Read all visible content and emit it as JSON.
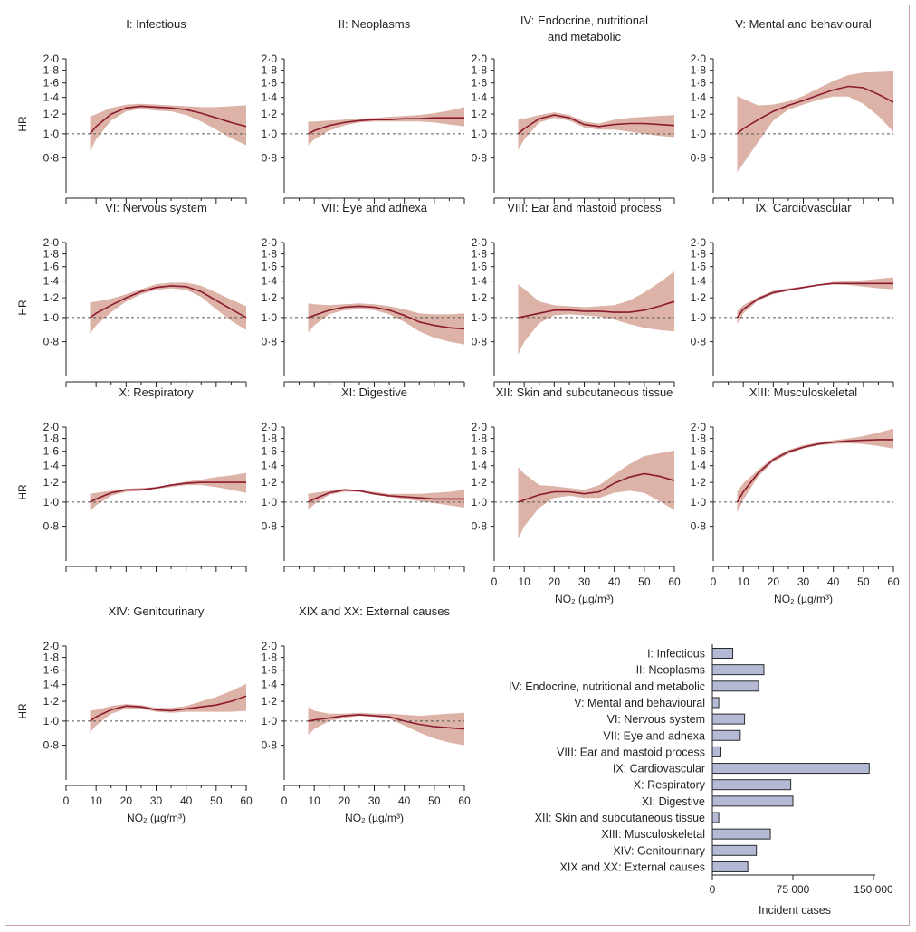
{
  "chart_data": [
    {
      "type": "line",
      "title": "I: Infectious",
      "ylabel": "HR",
      "ylim": [
        0.6,
        2.0
      ],
      "xlim": [
        0,
        60
      ],
      "yticks": [
        "2·0",
        "1·8",
        "1·6",
        "1·4",
        "1·2",
        "1·0",
        "0·8"
      ],
      "xticks": [],
      "xlabel": "",
      "reference_line": 1.0,
      "x": [
        8,
        10,
        15,
        20,
        25,
        30,
        35,
        40,
        45,
        50,
        55,
        60
      ],
      "hr": [
        1.0,
        1.07,
        1.2,
        1.27,
        1.29,
        1.28,
        1.27,
        1.25,
        1.21,
        1.16,
        1.11,
        1.07
      ],
      "lower": [
        0.85,
        0.95,
        1.13,
        1.23,
        1.26,
        1.24,
        1.23,
        1.19,
        1.12,
        1.04,
        0.96,
        0.9
      ],
      "upper": [
        1.17,
        1.2,
        1.27,
        1.31,
        1.32,
        1.31,
        1.3,
        1.29,
        1.28,
        1.28,
        1.29,
        1.3
      ]
    },
    {
      "type": "line",
      "title": "II: Neoplasms",
      "ylabel": "",
      "ylim": [
        0.6,
        2.0
      ],
      "xlim": [
        0,
        60
      ],
      "yticks": [
        "2·0",
        "1·8",
        "1·6",
        "1·4",
        "1·2",
        "1·0",
        "0·8"
      ],
      "xticks": [],
      "xlabel": "",
      "reference_line": 1.0,
      "x": [
        8,
        10,
        15,
        20,
        25,
        30,
        35,
        40,
        45,
        50,
        55,
        60
      ],
      "hr": [
        1.0,
        1.03,
        1.08,
        1.11,
        1.13,
        1.14,
        1.14,
        1.15,
        1.15,
        1.16,
        1.16,
        1.16
      ],
      "lower": [
        0.9,
        0.95,
        1.03,
        1.08,
        1.11,
        1.12,
        1.12,
        1.12,
        1.12,
        1.11,
        1.09,
        1.07
      ],
      "upper": [
        1.12,
        1.12,
        1.13,
        1.14,
        1.15,
        1.16,
        1.17,
        1.18,
        1.19,
        1.21,
        1.24,
        1.28
      ]
    },
    {
      "type": "line",
      "title": "IV: Endocrine, nutritional and metabolic",
      "ylabel": "",
      "ylim": [
        0.6,
        2.0
      ],
      "xlim": [
        0,
        60
      ],
      "yticks": [
        "2·0",
        "1·8",
        "1·6",
        "1·4",
        "1·2",
        "1·0",
        "0·8"
      ],
      "xticks": [],
      "xlabel": "",
      "reference_line": 1.0,
      "x": [
        8,
        10,
        15,
        20,
        25,
        30,
        35,
        40,
        45,
        50,
        55,
        60
      ],
      "hr": [
        1.0,
        1.05,
        1.15,
        1.19,
        1.16,
        1.09,
        1.07,
        1.09,
        1.1,
        1.1,
        1.09,
        1.08
      ],
      "lower": [
        0.86,
        0.95,
        1.11,
        1.16,
        1.13,
        1.06,
        1.04,
        1.04,
        1.02,
        1.0,
        0.98,
        0.97
      ],
      "upper": [
        1.14,
        1.15,
        1.19,
        1.22,
        1.19,
        1.12,
        1.1,
        1.14,
        1.16,
        1.17,
        1.18,
        1.19
      ]
    },
    {
      "type": "line",
      "title": "V: Mental and behavioural",
      "ylabel": "",
      "ylim": [
        0.6,
        2.0
      ],
      "xlim": [
        0,
        60
      ],
      "yticks": [
        "2·0",
        "1·8",
        "1·6",
        "1·4",
        "1·2",
        "1·0",
        "0·8"
      ],
      "xticks": [],
      "xlabel": "",
      "reference_line": 1.0,
      "x": [
        8,
        10,
        15,
        20,
        25,
        30,
        35,
        40,
        45,
        50,
        55,
        60
      ],
      "hr": [
        1.0,
        1.05,
        1.14,
        1.23,
        1.3,
        1.36,
        1.43,
        1.5,
        1.55,
        1.53,
        1.44,
        1.34
      ],
      "lower": [
        0.7,
        0.76,
        0.93,
        1.13,
        1.25,
        1.31,
        1.37,
        1.41,
        1.41,
        1.32,
        1.18,
        1.02
      ],
      "upper": [
        1.42,
        1.38,
        1.3,
        1.31,
        1.35,
        1.42,
        1.52,
        1.63,
        1.72,
        1.76,
        1.77,
        1.78
      ]
    },
    {
      "type": "line",
      "title": "VI: Nervous system",
      "ylabel": "HR",
      "ylim": [
        0.6,
        2.0
      ],
      "xlim": [
        0,
        60
      ],
      "yticks": [
        "2·0",
        "1·8",
        "1·6",
        "1·4",
        "1·2",
        "1·0",
        "0·8"
      ],
      "xticks": [],
      "xlabel": "",
      "reference_line": 1.0,
      "x": [
        8,
        10,
        15,
        20,
        25,
        30,
        35,
        40,
        45,
        50,
        55,
        60
      ],
      "hr": [
        1.0,
        1.04,
        1.12,
        1.2,
        1.27,
        1.32,
        1.34,
        1.33,
        1.27,
        1.17,
        1.08,
        1.0
      ],
      "lower": [
        0.86,
        0.93,
        1.05,
        1.16,
        1.24,
        1.29,
        1.31,
        1.29,
        1.21,
        1.08,
        0.97,
        0.89
      ],
      "upper": [
        1.15,
        1.16,
        1.19,
        1.24,
        1.3,
        1.36,
        1.38,
        1.38,
        1.34,
        1.26,
        1.18,
        1.11
      ]
    },
    {
      "type": "line",
      "title": "VII: Eye and adnexa",
      "ylabel": "",
      "ylim": [
        0.6,
        2.0
      ],
      "xlim": [
        0,
        60
      ],
      "yticks": [
        "2·0",
        "1·8",
        "1·6",
        "1·4",
        "1·2",
        "1·0",
        "0·8"
      ],
      "xticks": [],
      "xlabel": "",
      "reference_line": 1.0,
      "x": [
        8,
        10,
        15,
        20,
        25,
        30,
        35,
        40,
        45,
        50,
        55,
        60
      ],
      "hr": [
        1.0,
        1.02,
        1.07,
        1.1,
        1.11,
        1.1,
        1.07,
        1.02,
        0.96,
        0.93,
        0.91,
        0.9
      ],
      "lower": [
        0.87,
        0.93,
        1.03,
        1.07,
        1.08,
        1.07,
        1.03,
        0.96,
        0.88,
        0.83,
        0.8,
        0.78
      ],
      "upper": [
        1.14,
        1.13,
        1.12,
        1.13,
        1.14,
        1.13,
        1.11,
        1.08,
        1.04,
        1.03,
        1.03,
        1.04
      ]
    },
    {
      "type": "line",
      "title": "VIII: Ear and mastoid process",
      "ylabel": "",
      "ylim": [
        0.6,
        2.0
      ],
      "xlim": [
        0,
        60
      ],
      "yticks": [
        "2·0",
        "1·8",
        "1·6",
        "1·4",
        "1·2",
        "1·0",
        "0·8"
      ],
      "xticks": [],
      "xlabel": "",
      "reference_line": 1.0,
      "x": [
        8,
        10,
        15,
        20,
        25,
        30,
        35,
        40,
        45,
        50,
        55,
        60
      ],
      "hr": [
        1.0,
        1.01,
        1.04,
        1.07,
        1.07,
        1.06,
        1.06,
        1.05,
        1.05,
        1.07,
        1.11,
        1.16
      ],
      "lower": [
        0.71,
        0.8,
        0.95,
        1.02,
        1.03,
        1.02,
        1.01,
        0.98,
        0.94,
        0.91,
        0.89,
        0.88
      ],
      "upper": [
        1.36,
        1.3,
        1.16,
        1.12,
        1.11,
        1.1,
        1.11,
        1.12,
        1.17,
        1.26,
        1.38,
        1.53
      ]
    },
    {
      "type": "line",
      "title": "IX: Cardiovascular",
      "ylabel": "",
      "ylim": [
        0.6,
        2.0
      ],
      "xlim": [
        0,
        60
      ],
      "yticks": [
        "2·0",
        "1·8",
        "1·6",
        "1·4",
        "1·2",
        "1·0",
        "0·8"
      ],
      "xticks": [],
      "xlabel": "",
      "reference_line": 1.0,
      "x": [
        8,
        10,
        15,
        20,
        25,
        30,
        35,
        40,
        45,
        50,
        55,
        60
      ],
      "hr": [
        1.0,
        1.08,
        1.19,
        1.26,
        1.29,
        1.32,
        1.35,
        1.37,
        1.37,
        1.37,
        1.37,
        1.37
      ],
      "lower": [
        0.94,
        1.04,
        1.17,
        1.24,
        1.28,
        1.31,
        1.34,
        1.36,
        1.35,
        1.33,
        1.31,
        1.3
      ],
      "upper": [
        1.06,
        1.12,
        1.21,
        1.28,
        1.31,
        1.33,
        1.36,
        1.39,
        1.4,
        1.41,
        1.43,
        1.45
      ]
    },
    {
      "type": "line",
      "title": "X: Respiratory",
      "ylabel": "HR",
      "ylim": [
        0.6,
        2.0
      ],
      "xlim": [
        0,
        60
      ],
      "yticks": [
        "2·0",
        "1·8",
        "1·6",
        "1·4",
        "1·2",
        "1·0",
        "0·8"
      ],
      "xticks": [],
      "xlabel": "",
      "reference_line": 1.0,
      "x": [
        8,
        10,
        15,
        20,
        25,
        30,
        35,
        40,
        45,
        50,
        55,
        60
      ],
      "hr": [
        1.0,
        1.03,
        1.09,
        1.12,
        1.12,
        1.14,
        1.17,
        1.19,
        1.2,
        1.2,
        1.2,
        1.2
      ],
      "lower": [
        0.92,
        0.97,
        1.06,
        1.1,
        1.11,
        1.13,
        1.15,
        1.17,
        1.17,
        1.15,
        1.12,
        1.09
      ],
      "upper": [
        1.08,
        1.09,
        1.11,
        1.13,
        1.14,
        1.15,
        1.18,
        1.21,
        1.23,
        1.26,
        1.28,
        1.31
      ]
    },
    {
      "type": "line",
      "title": "XI: Digestive",
      "ylabel": "",
      "ylim": [
        0.6,
        2.0
      ],
      "xlim": [
        0,
        60
      ],
      "yticks": [
        "2·0",
        "1·8",
        "1·6",
        "1·4",
        "1·2",
        "1·0",
        "0·8"
      ],
      "xticks": [],
      "xlabel": "",
      "reference_line": 1.0,
      "x": [
        8,
        10,
        15,
        20,
        25,
        30,
        35,
        40,
        45,
        50,
        55,
        60
      ],
      "hr": [
        1.0,
        1.03,
        1.09,
        1.12,
        1.11,
        1.08,
        1.06,
        1.05,
        1.04,
        1.03,
        1.03,
        1.03
      ],
      "lower": [
        0.93,
        0.98,
        1.07,
        1.1,
        1.1,
        1.07,
        1.05,
        1.03,
        1.01,
        0.99,
        0.97,
        0.95
      ],
      "upper": [
        1.08,
        1.09,
        1.11,
        1.13,
        1.12,
        1.1,
        1.08,
        1.08,
        1.08,
        1.09,
        1.1,
        1.12
      ]
    },
    {
      "type": "line",
      "title": "XII: Skin and subcutaneous tissue",
      "ylabel": "",
      "ylim": [
        0.6,
        2.0
      ],
      "xlim": [
        0,
        60
      ],
      "yticks": [
        "2·0",
        "1·8",
        "1·6",
        "1·4",
        "1·2",
        "1·0",
        "0·8"
      ],
      "xticks": [
        "0",
        "10",
        "20",
        "30",
        "40",
        "50",
        "60"
      ],
      "xlabel": "NO₂ (µg/m³)",
      "reference_line": 1.0,
      "x": [
        8,
        10,
        15,
        20,
        25,
        30,
        35,
        40,
        45,
        50,
        55,
        60
      ],
      "hr": [
        1.0,
        1.02,
        1.07,
        1.1,
        1.1,
        1.08,
        1.1,
        1.19,
        1.26,
        1.3,
        1.27,
        1.22
      ],
      "lower": [
        0.71,
        0.8,
        0.95,
        1.04,
        1.06,
        1.04,
        1.04,
        1.09,
        1.11,
        1.09,
        1.01,
        0.93
      ],
      "upper": [
        1.38,
        1.3,
        1.17,
        1.16,
        1.14,
        1.12,
        1.17,
        1.29,
        1.42,
        1.53,
        1.57,
        1.61
      ]
    },
    {
      "type": "line",
      "title": "XIII: Musculoskeletal",
      "ylabel": "",
      "ylim": [
        0.6,
        2.0
      ],
      "xlim": [
        0,
        60
      ],
      "yticks": [
        "2·0",
        "1·8",
        "1·6",
        "1·4",
        "1·2",
        "1·0",
        "0·8"
      ],
      "xticks": [
        "0",
        "10",
        "20",
        "30",
        "40",
        "50",
        "60"
      ],
      "xlabel": "NO₂ (µg/m³)",
      "reference_line": 1.0,
      "x": [
        8,
        10,
        15,
        20,
        25,
        30,
        35,
        40,
        45,
        50,
        55,
        60
      ],
      "hr": [
        1.0,
        1.1,
        1.31,
        1.48,
        1.59,
        1.66,
        1.71,
        1.74,
        1.76,
        1.77,
        1.78,
        1.78
      ],
      "lower": [
        0.91,
        1.02,
        1.27,
        1.45,
        1.56,
        1.64,
        1.69,
        1.71,
        1.72,
        1.71,
        1.68,
        1.64
      ],
      "upper": [
        1.1,
        1.19,
        1.35,
        1.51,
        1.62,
        1.69,
        1.74,
        1.77,
        1.8,
        1.84,
        1.9,
        1.97
      ]
    },
    {
      "type": "line",
      "title": "XIV: Genitourinary",
      "ylabel": "HR",
      "ylim": [
        0.6,
        2.0
      ],
      "xlim": [
        0,
        60
      ],
      "yticks": [
        "2·0",
        "1·8",
        "1·6",
        "1·4",
        "1·2",
        "1·0",
        "0·8"
      ],
      "xticks": [
        "0",
        "10",
        "20",
        "30",
        "40",
        "50",
        "60"
      ],
      "xlabel": "NO₂ (µg/m³)",
      "reference_line": 1.0,
      "x": [
        8,
        10,
        15,
        20,
        25,
        30,
        35,
        40,
        45,
        50,
        55,
        60
      ],
      "hr": [
        1.0,
        1.04,
        1.11,
        1.15,
        1.14,
        1.11,
        1.1,
        1.12,
        1.14,
        1.16,
        1.2,
        1.26
      ],
      "lower": [
        0.9,
        0.96,
        1.07,
        1.12,
        1.12,
        1.09,
        1.08,
        1.09,
        1.09,
        1.09,
        1.09,
        1.1
      ],
      "upper": [
        1.1,
        1.11,
        1.15,
        1.17,
        1.16,
        1.13,
        1.13,
        1.15,
        1.2,
        1.25,
        1.32,
        1.41
      ]
    },
    {
      "type": "line",
      "title": "XIX and XX: External causes",
      "ylabel": "",
      "ylim": [
        0.6,
        2.0
      ],
      "xlim": [
        0,
        60
      ],
      "yticks": [
        "2·0",
        "1·8",
        "1·6",
        "1·4",
        "1·2",
        "1·0",
        "0·8"
      ],
      "xticks": [
        "0",
        "10",
        "20",
        "30",
        "40",
        "50",
        "60"
      ],
      "xlabel": "NO₂ (µg/m³)",
      "reference_line": 1.0,
      "x": [
        8,
        10,
        15,
        20,
        25,
        30,
        35,
        40,
        45,
        50,
        55,
        60
      ],
      "hr": [
        1.0,
        1.01,
        1.03,
        1.05,
        1.06,
        1.05,
        1.04,
        1.0,
        0.97,
        0.95,
        0.94,
        0.93
      ],
      "lower": [
        0.88,
        0.93,
        1.0,
        1.03,
        1.05,
        1.04,
        1.02,
        0.96,
        0.9,
        0.85,
        0.82,
        0.8
      ],
      "upper": [
        1.14,
        1.1,
        1.07,
        1.07,
        1.08,
        1.07,
        1.07,
        1.06,
        1.05,
        1.06,
        1.07,
        1.08
      ]
    },
    {
      "type": "bar",
      "orientation": "horizontal",
      "title": "",
      "xlabel": "Incident cases",
      "ylabel": "",
      "xlim": [
        0,
        150000
      ],
      "xticks": [
        "0",
        "75 000",
        "150 000"
      ],
      "categories": [
        "I: Infectious",
        "II: Neoplasms",
        "IV: Endocrine, nutritional and metabolic",
        "V: Mental and behavioural",
        "VI: Nervous system",
        "VII: Eye and adnexa",
        "VIII: Ear and mastoid process",
        "IX: Cardiovascular",
        "X: Respiratory",
        "XI: Digestive",
        "XII: Skin and subcutaneous tissue",
        "XIII: Musculoskeletal",
        "XIV: Genitourinary",
        "XIX and XX: External causes"
      ],
      "values": [
        19000,
        48000,
        43000,
        6000,
        30000,
        26000,
        8000,
        146000,
        73000,
        75000,
        6000,
        54000,
        41000,
        33000
      ]
    }
  ],
  "colors": {
    "line": "#8b1a2e",
    "band": "#ddb3a8",
    "bar_fill": "#b4bad6",
    "bar_stroke": "#2a2a2a",
    "axis": "#231f20",
    "reference": "#555555",
    "frame": "#c9a0b0"
  }
}
